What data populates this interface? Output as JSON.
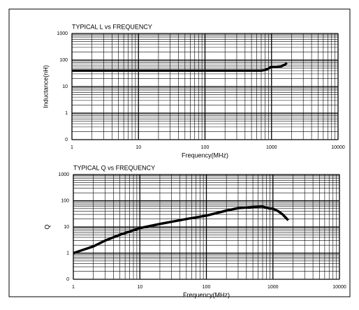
{
  "chart_data": [
    {
      "type": "line",
      "title": "TYPICAL L vs FREQUENCY",
      "xlabel": "Frequency(MHz)",
      "ylabel": "Inductance(nH)",
      "x": [
        1,
        10,
        100,
        500,
        700,
        800,
        900,
        1000,
        1200,
        1400,
        1600,
        1700
      ],
      "series": [
        {
          "name": "L",
          "color": "#000000",
          "values": [
            40,
            40,
            40,
            40,
            40,
            42,
            48,
            55,
            56,
            58,
            68,
            78
          ]
        }
      ],
      "xscale": "log",
      "yscale": "log",
      "grid": true,
      "minor_grid": true,
      "xlim": [
        1,
        10000
      ],
      "xticks": [
        1,
        10,
        100,
        1000,
        10000
      ],
      "ylim": [
        0.1,
        1000
      ],
      "yticks": [
        {
          "value": 0.1,
          "label": "0"
        },
        1,
        10,
        100,
        1000
      ]
    },
    {
      "type": "line",
      "title": "TYPICAL Q vs FREQUENCY",
      "xlabel": "Frequency(MHz)",
      "ylabel": "Q",
      "x": [
        1,
        2,
        3,
        5,
        10,
        20,
        50,
        100,
        200,
        300,
        500,
        700,
        900,
        1000,
        1200,
        1400,
        1700
      ],
      "series": [
        {
          "name": "Q",
          "color": "#000000",
          "values": [
            1,
            1.8,
            3,
            5,
            9,
            13,
            20,
            27,
            42,
            52,
            58,
            60,
            50,
            50,
            40,
            30,
            18
          ]
        }
      ],
      "xscale": "log",
      "yscale": "log",
      "grid": true,
      "minor_grid": true,
      "xlim": [
        1,
        10000
      ],
      "xticks": [
        1,
        10,
        100,
        1000,
        10000
      ],
      "ylim": [
        0.1,
        1000
      ],
      "yticks": [
        {
          "value": 0.1,
          "label": "0"
        },
        1,
        10,
        100,
        1000
      ]
    }
  ]
}
